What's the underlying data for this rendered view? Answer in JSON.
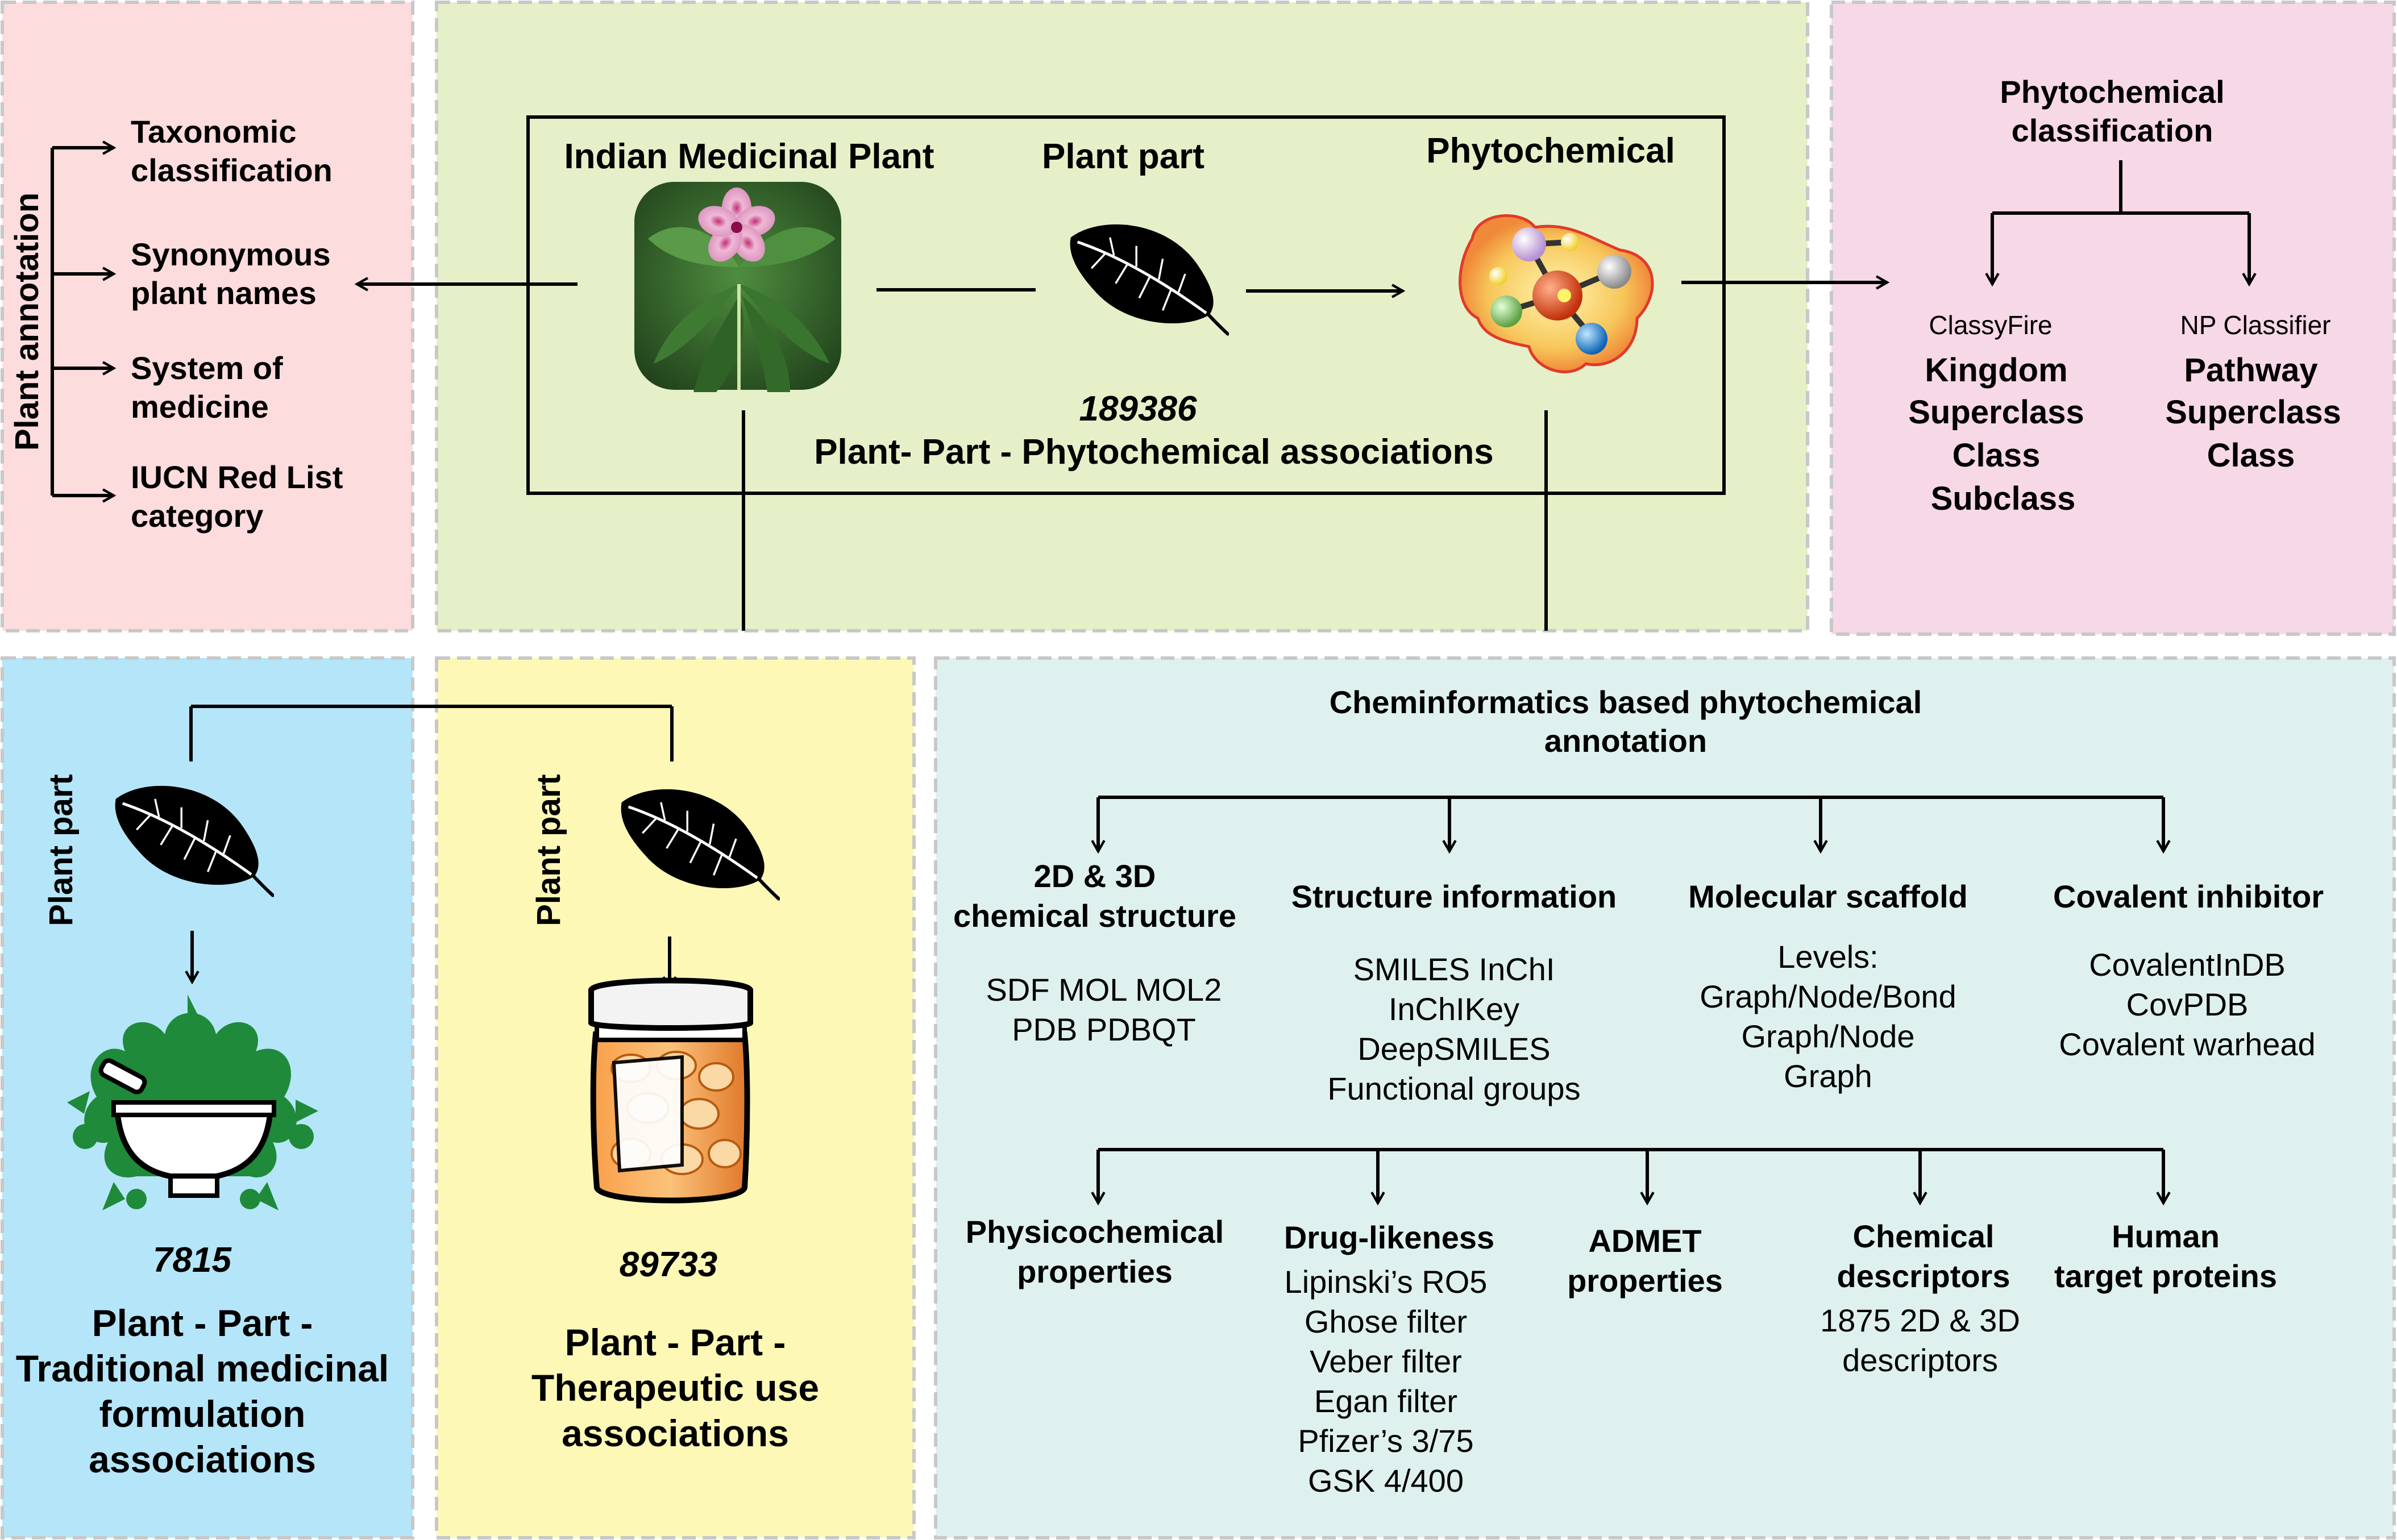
{
  "colors": {
    "pink": "#fcdcdc",
    "green": "#e5f0c8",
    "magenta": "#f7d8e7",
    "blue": "#b5e5f8",
    "yellow": "#fdf8b6",
    "teal": "#dff1ee",
    "border": "#c8c8c8",
    "line": "#000000"
  },
  "plant_annotation": {
    "title": "Plant annotation",
    "items": [
      "Taxonomic",
      "classification",
      "Synonymous",
      "plant names",
      "System of",
      "medicine",
      "IUCN Red List",
      "category"
    ]
  },
  "center": {
    "plant_label": "Indian Medicinal Plant",
    "part_label": "Plant part",
    "phyto_label": "Phytochemical",
    "count": "189386",
    "caption": "Plant- Part - Phytochemical associations",
    "icons": {
      "plant": "periwinkle-plant-photo",
      "leaf": "leaf-icon",
      "molecule": "molecule-icon"
    }
  },
  "classification": {
    "title": [
      "Phytochemical",
      "classification"
    ],
    "classyfire": {
      "name": "ClassyFire",
      "levels": [
        "Kingdom",
        "Superclass",
        "Class",
        "Subclass"
      ]
    },
    "npclassifier": {
      "name": "NP Classifier",
      "levels": [
        "Pathway",
        "Superclass",
        "Class"
      ]
    }
  },
  "formulation": {
    "side_label": "Plant part",
    "count": "7815",
    "caption": [
      "Plant - Part -",
      "Traditional medicinal",
      "formulation",
      "associations"
    ],
    "icons": {
      "leaf": "leaf-icon",
      "formulation": "mortar-pestle-herbs-icon"
    }
  },
  "therapeutic": {
    "side_label": "Plant part",
    "count": "89733",
    "caption": [
      "Plant - Part -",
      "Therapeutic use",
      "associations"
    ],
    "icons": {
      "leaf": "leaf-icon",
      "medicine": "medicine-jar-icon"
    }
  },
  "cheminformatics": {
    "title": [
      "Cheminformatics based phytochemical",
      "annotation"
    ],
    "row1": [
      {
        "title": [
          "2D & 3D",
          "chemical structure"
        ],
        "items": [
          "SDF MOL MOL2",
          "PDB PDBQT"
        ]
      },
      {
        "title": [
          "Structure information"
        ],
        "items": [
          "SMILES InChI",
          "InChIKey",
          "DeepSMILES",
          "Functional groups"
        ]
      },
      {
        "title": [
          "Molecular scaffold"
        ],
        "items": [
          "Levels:",
          "Graph/Node/Bond",
          "Graph/Node",
          "Graph"
        ]
      },
      {
        "title": [
          "Covalent inhibitor"
        ],
        "items": [
          "CovalentInDB",
          "CovPDB",
          "Covalent warhead"
        ]
      }
    ],
    "row2": [
      {
        "title": [
          "Physicochemical",
          "properties"
        ],
        "items": []
      },
      {
        "title": [
          "Drug-likeness"
        ],
        "items": [
          "Lipinski’s RO5",
          "Ghose filter",
          "Veber filter",
          "Egan filter",
          "Pfizer’s 3/75",
          "GSK 4/400"
        ]
      },
      {
        "title": [
          "ADMET",
          "properties"
        ],
        "items": []
      },
      {
        "title": [
          "Chemical",
          "descriptors"
        ],
        "items": [
          "1875 2D & 3D",
          "descriptors"
        ]
      },
      {
        "title": [
          "Human",
          "target proteins"
        ],
        "items": []
      }
    ]
  }
}
